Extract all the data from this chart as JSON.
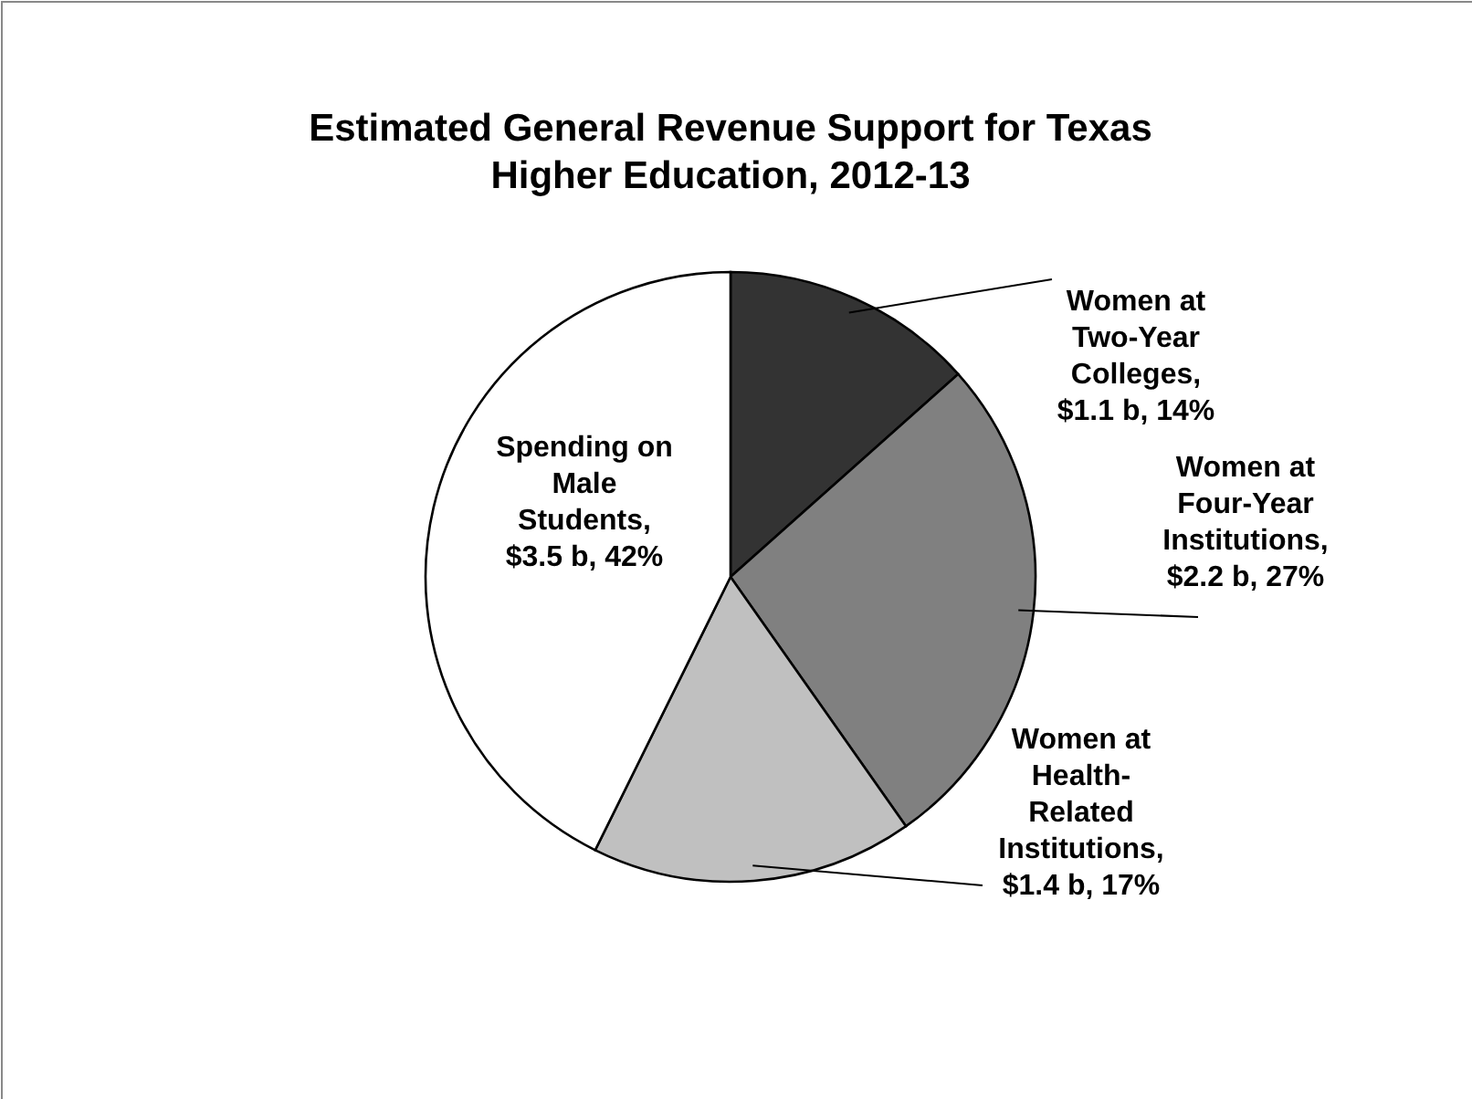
{
  "chart_data": {
    "type": "pie",
    "title": "Estimated General Revenue Support for Texas Higher Education, 2012-13",
    "categories": [
      "Women at Two-Year Colleges",
      "Women at Four-Year Institutions",
      "Women at Health-Related Institutions",
      "Spending on Male Students"
    ],
    "values": [
      1.1,
      2.2,
      1.4,
      3.5
    ],
    "value_labels": [
      ", $1.1 b, 14%",
      ", $2.2 b, 27%",
      ", $1.4 b, 17%",
      ", $3.5 b, 42%"
    ],
    "colors": [
      "#333333",
      "#808080",
      "#c0c0c0",
      "#ffffff"
    ],
    "legend": false
  }
}
